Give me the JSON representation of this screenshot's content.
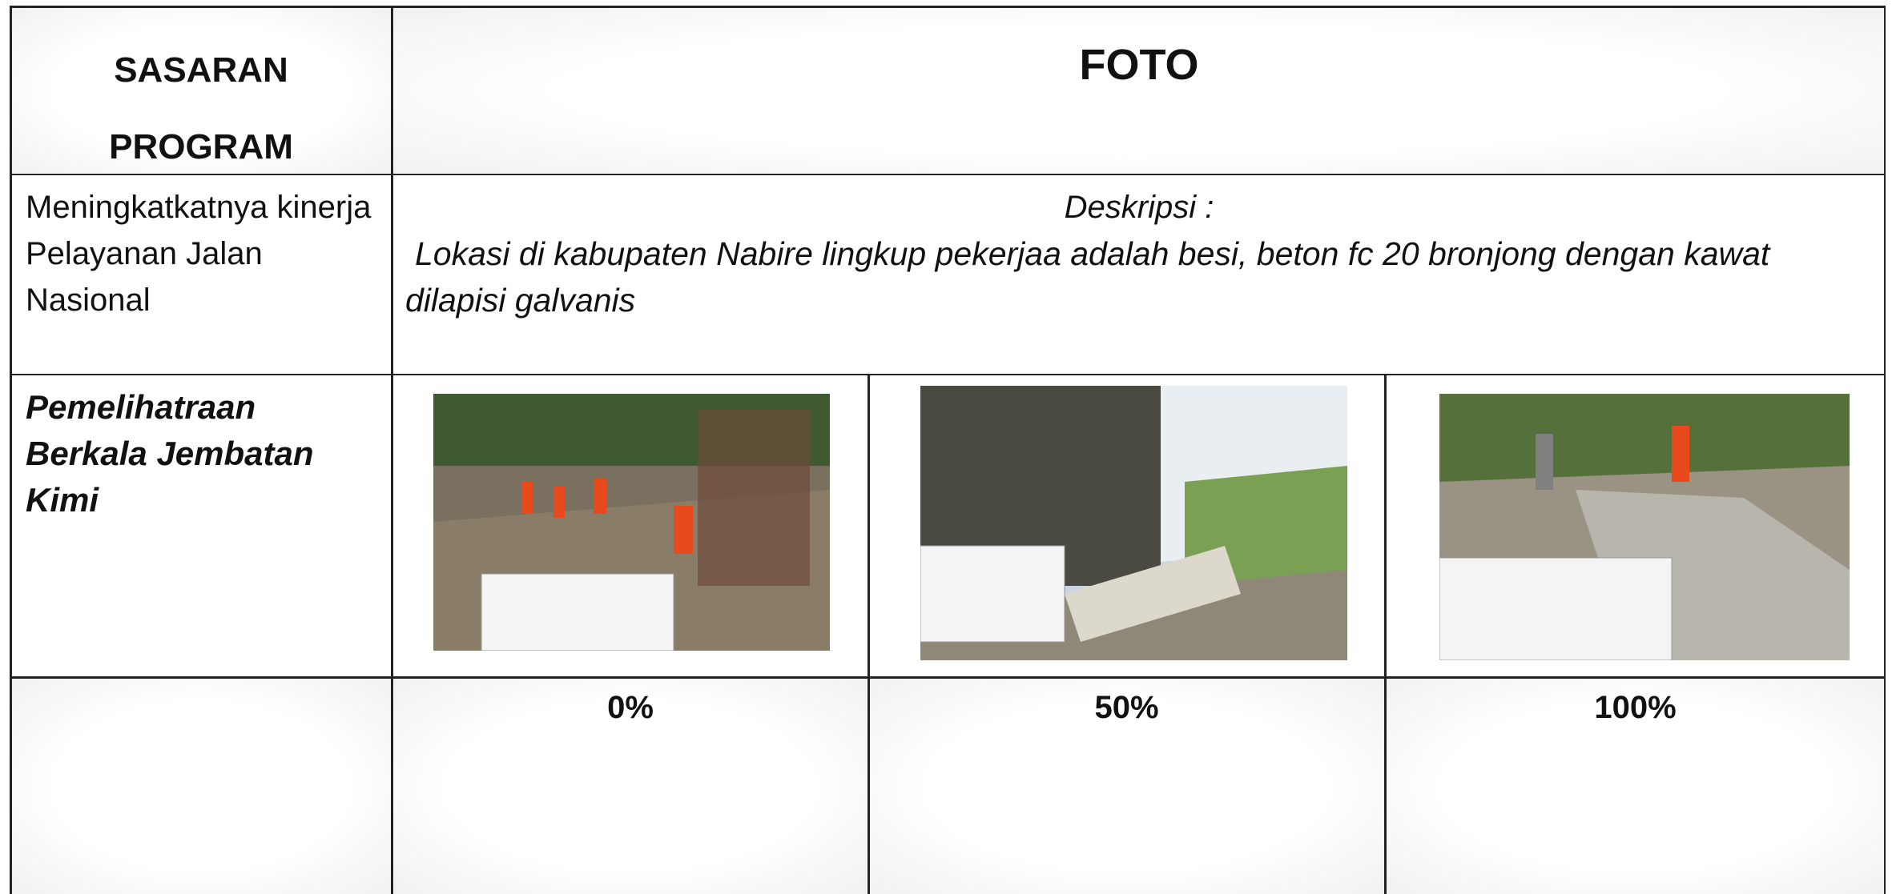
{
  "header": {
    "program": [
      "SASARAN",
      "PROGRAM"
    ],
    "photo": "FOTO"
  },
  "rows": [
    {
      "target": "Meningkatkatnya kinerja Pelayanan Jalan Nasional",
      "description_label": "Deskripsi :",
      "description": "Lokasi di kabupaten Nabire lingkup pekerjaa adalah besi, beton fc 20 bronjong dengan kawat dilapisi galvanis"
    },
    {
      "program": "Pemelihatraan Berkala Jembatan Kimi"
    }
  ],
  "progress": [
    "0%",
    "50%",
    "100%"
  ]
}
